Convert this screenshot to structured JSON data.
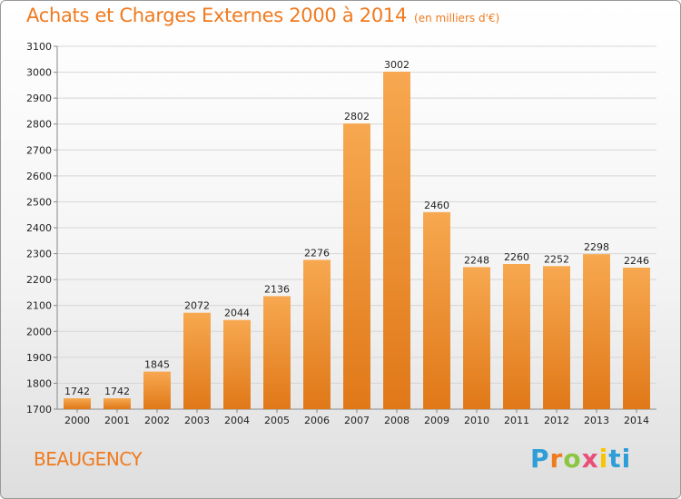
{
  "header": {
    "title": "Achats et Charges Externes 2000 à 2014",
    "subtitle": "(en milliers d'€)"
  },
  "footer": {
    "town": "BEAUGENCY",
    "logo": [
      "P",
      "r",
      "o",
      "x",
      "i",
      "ti"
    ]
  },
  "colors": {
    "bar_top": "#f7a850",
    "bar_bottom": "#e07818",
    "accent": "#f07a1e"
  },
  "chart_data": {
    "type": "bar",
    "title": "Achats et Charges Externes 2000 à 2014",
    "subtitle": "(en milliers d'€)",
    "xlabel": "",
    "ylabel": "",
    "categories": [
      "2000",
      "2001",
      "2002",
      "2003",
      "2004",
      "2005",
      "2006",
      "2007",
      "2008",
      "2009",
      "2010",
      "2011",
      "2012",
      "2013",
      "2014"
    ],
    "values": [
      1742,
      1742,
      1845,
      2072,
      2044,
      2136,
      2276,
      2802,
      3002,
      2460,
      2248,
      2260,
      2252,
      2298,
      2246
    ],
    "value_labels": [
      "1742",
      "1742",
      "1845",
      "2072",
      "2044",
      "2136",
      "2276",
      "2802",
      "3002",
      "2460",
      "2248",
      "2260",
      "2252",
      "2298",
      "2246"
    ],
    "ylim": [
      1700,
      3100
    ],
    "yticks": [
      1700,
      1800,
      1900,
      2000,
      2100,
      2200,
      2300,
      2400,
      2500,
      2600,
      2700,
      2800,
      2900,
      3000,
      3100
    ],
    "ytick_labels": [
      "1700",
      "1800",
      "1900",
      "2000",
      "2100",
      "2200",
      "2300",
      "2400",
      "2500",
      "2600",
      "2700",
      "2800",
      "2900",
      "3000",
      "3100"
    ],
    "grid": true,
    "legend": "none"
  }
}
